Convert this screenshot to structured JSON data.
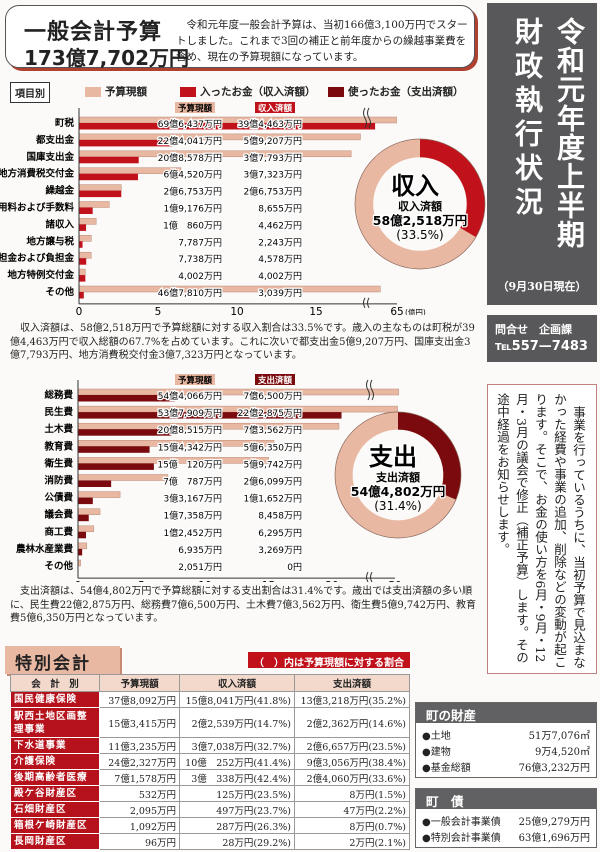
{
  "general_budget": {
    "title": "一般会計予算",
    "amount": "173億7,702万円",
    "description": "令和元年度一般会計予算は、当初166億3,100万円でスタートしました。これまで3回の補正と前年度からの繰越事業費を含め、現在の予算現額になっています。"
  },
  "side_title": {
    "line1": "令和元年度上半期",
    "line2": "財政執行状況",
    "date": "（9月30日現在）"
  },
  "contact": {
    "label": "問合せ　企画課",
    "tel": "℡557—7483"
  },
  "note": "事業を行っているうちに、当初予算で見込まなかった経費や事業の追加、削除などの変動が起こります。そこで、お金の使い方を6月・9月・12月・3月の議会で修正（補正予算）します。その途中経過をお知らせします。",
  "legend": {
    "tag": "項目別",
    "items": [
      {
        "label": "予算現額",
        "color": "#e9b8a2"
      },
      {
        "label": "入ったお金（収入済額）",
        "color": "#c1121c"
      },
      {
        "label": "使ったお金（支出済額）",
        "color": "#7a0a0e"
      }
    ]
  },
  "chart_data": [
    {
      "type": "bar",
      "unit": "(億円)",
      "header_budget": "予算現額",
      "header_actual": "収入済額",
      "categories": [
        "町税",
        "都支出金",
        "国庫支出金",
        "地方消費税交付金",
        "繰越金",
        "使用料および手数料",
        "諸収入",
        "地方譲与税",
        "分担金および負担金",
        "地方特例交付金",
        "その他"
      ],
      "series": [
        {
          "name": "予算現額",
          "color": "#e9b8a2",
          "values": [
            69.6437,
            22.4041,
            20.8578,
            6.452,
            2.6753,
            1.9176,
            1.086,
            0.7787,
            0.7738,
            0.4002,
            46.781
          ],
          "labels": [
            "69億6,437万円",
            "22億4,041万円",
            "20億8,578万円",
            "6億4,520万円",
            "2億6,753万円",
            "1億9,176万円",
            "1億　860万円",
            "7,787万円",
            "7,738万円",
            "4,002万円",
            "46億7,810万円"
          ]
        },
        {
          "name": "収入済額",
          "color": "#c1121c",
          "values": [
            39.4463,
            5.9207,
            3.7793,
            3.7323,
            2.6753,
            0.8655,
            0.4462,
            0.2243,
            0.4578,
            0.4002,
            0.3039
          ],
          "labels": [
            "39億4,463万円",
            "5億9,207万円",
            "3億7,793万円",
            "3億7,323万円",
            "2億6,753万円",
            "8,655万円",
            "4,462万円",
            "2,243万円",
            "4,578万円",
            "4,002万円",
            "3,039万円"
          ]
        }
      ],
      "xticks": [
        "0",
        "5",
        "10",
        "15",
        "65"
      ],
      "axis_break": true,
      "donut": {
        "title": "収入",
        "label": "収入済額",
        "amount": "58億2,518万円",
        "percent_label": "(33.5%)",
        "percent": 33.5,
        "color": "#c1121c",
        "rest_color": "#e9b8a2"
      }
    },
    {
      "type": "bar",
      "unit": "(億円)",
      "header_budget": "予算現額",
      "header_actual": "支出済額",
      "categories": [
        "総務費",
        "民生費",
        "土木費",
        "教育費",
        "衛生費",
        "消防費",
        "公債費",
        "議会費",
        "商工費",
        "農林水産業費",
        "その他"
      ],
      "series": [
        {
          "name": "予算現額",
          "color": "#e9b8a2",
          "values": [
            54.4066,
            53.7909,
            20.8515,
            15.4342,
            15.012,
            7.0787,
            3.3167,
            1.7358,
            1.2452,
            0.6935,
            0.2051
          ],
          "labels": [
            "54億4,066万円",
            "53億7,909万円",
            "20億8,515万円",
            "15億4,342万円",
            "15億　120万円",
            "7億　787万円",
            "3億3,167万円",
            "1億7,358万円",
            "1億2,452万円",
            "6,935万円",
            "2,051万円"
          ]
        },
        {
          "name": "支出済額",
          "color": "#7a0a0e",
          "values": [
            7.65,
            22.2875,
            7.3562,
            5.635,
            5.9742,
            2.6099,
            1.1652,
            0.8458,
            0.6295,
            0.3269,
            0
          ],
          "labels": [
            "7億6,500万円",
            "22億2,875万円",
            "7億3,562万円",
            "5億6,350万円",
            "5億9,742万円",
            "2億6,099万円",
            "1億1,652万円",
            "8,458万円",
            "6,295万円",
            "3,269万円",
            "0円"
          ]
        }
      ],
      "xticks": [
        "0",
        "5",
        "10",
        "15",
        "20",
        "50"
      ],
      "axis_break": true,
      "donut": {
        "title": "支出",
        "label": "支出済額",
        "amount": "54億4,802万円",
        "percent_label": "(31.4%)",
        "percent": 31.4,
        "color": "#7a0a0e",
        "rest_color": "#e9b8a2"
      }
    }
  ],
  "income_text": "収入済額は、58億2,518万円で予算総額に対する収入割合は33.5%です。歳入の主なものは町税が39億4,463万円で収入総額の67.7%を占めています。これに次いで都支出金5億9,207万円、国庫支出金3億7,793万円、地方消費税交付金3億7,323万円となっています。",
  "expense_text": "支出済額は、54億4,802万円で予算総額に対する支出割合は31.4%です。歳出では支出済額の多い順に、民生費22億2,875万円、総務費7億6,500万円、土木費7億3,562万円、衛生費5億9,742万円、教育費5億6,350万円となっています。",
  "special": {
    "title": "特別会計",
    "note": "（　）内は予算現額に対する割合",
    "headers": [
      "会　計　別",
      "予算現額",
      "収入済額",
      "支出済額"
    ],
    "rows": [
      [
        "国民健康保険",
        "37億8,092万円",
        "15億8,041万円(41.8%)",
        "13億3,218万円(35.2%)"
      ],
      [
        "駅西土地区画整理事業",
        "15億3,415万円",
        "2億2,539万円(14.7%)",
        "2億2,362万円(14.6%)"
      ],
      [
        "下水道事業",
        "11億3,235万円",
        "3億7,038万円(32.7%)",
        "2億6,657万円(23.5%)"
      ],
      [
        "介護保険",
        "24億2,327万円",
        "10億　252万円(41.4%)",
        "9億3,056万円(38.4%)"
      ],
      [
        "後期高齢者医療",
        "7億1,578万円",
        "3億　338万円(42.4%)",
        "2億4,060万円(33.6%)"
      ],
      [
        "殿ケ谷財産区",
        "532万円",
        "125万円(23.5%)",
        "8万円(1.5%)"
      ],
      [
        "石畑財産区",
        "2,095万円",
        "497万円(23.7%)",
        "47万円(2.2%)"
      ],
      [
        "箱根ケ崎財産区",
        "1,092万円",
        "287万円(26.3%)",
        "8万円(0.7%)"
      ],
      [
        "長岡財産区",
        "96万円",
        "28万円(29.2%)",
        "2万円(2.1%)"
      ]
    ]
  },
  "property": {
    "title": "町の財産",
    "items": [
      {
        "label": "●土地",
        "value": "51万7,076㎡"
      },
      {
        "label": "●建物",
        "value": "9万4,520㎡"
      },
      {
        "label": "●基金総額",
        "value": "76億3,232万円"
      }
    ]
  },
  "debt": {
    "title": "町　債",
    "items": [
      {
        "label": "●一般会計事業債",
        "value": "25億9,279万円"
      },
      {
        "label": "●特別会計事業債",
        "value": "63億1,696万円"
      }
    ]
  }
}
